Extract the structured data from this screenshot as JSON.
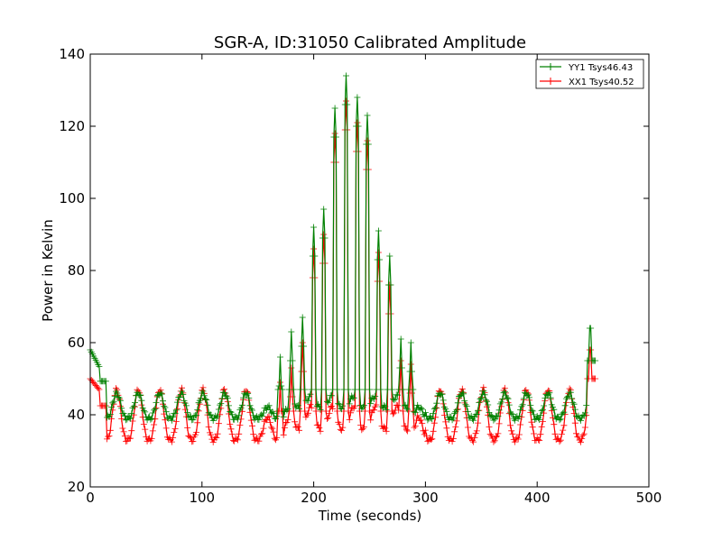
{
  "chart_data": {
    "type": "line",
    "title": "SGR-A, ID:31050 Calibrated Amplitude",
    "xlabel": "Time (seconds)",
    "ylabel": "Power in Kelvin",
    "xlim": [
      0,
      500
    ],
    "ylim": [
      20,
      140
    ],
    "xticks": [
      "0",
      "100",
      "200",
      "300",
      "400",
      "500"
    ],
    "yticks": [
      "20",
      "40",
      "60",
      "80",
      "100",
      "120",
      "140"
    ],
    "grid": false,
    "legend_position": "top-right",
    "series": [
      {
        "name": "YY1 Tsys46.43",
        "color": "#008000",
        "marker": "+",
        "baseline": 39,
        "osc_amp": 7,
        "start_value": 58,
        "end_value": 55,
        "end_peak": 64,
        "peaks": [
          {
            "x": 170,
            "y": 56
          },
          {
            "x": 180,
            "y": 63
          },
          {
            "x": 190,
            "y": 67
          },
          {
            "x": 200,
            "y": 92
          },
          {
            "x": 209,
            "y": 97
          },
          {
            "x": 219,
            "y": 125
          },
          {
            "x": 229,
            "y": 134
          },
          {
            "x": 239,
            "y": 128
          },
          {
            "x": 248,
            "y": 123
          },
          {
            "x": 258,
            "y": 91
          },
          {
            "x": 268,
            "y": 84
          },
          {
            "x": 278,
            "y": 61
          },
          {
            "x": 287,
            "y": 60
          }
        ]
      },
      {
        "name": "XX1 Tsys40.52",
        "color": "#ff0000",
        "marker": "+",
        "baseline": 33,
        "osc_amp": 14,
        "start_value": 50,
        "end_value": 50,
        "end_peak": 58,
        "peaks": [
          {
            "x": 170,
            "y": 49
          },
          {
            "x": 180,
            "y": 53
          },
          {
            "x": 190,
            "y": 60
          },
          {
            "x": 200,
            "y": 86
          },
          {
            "x": 209,
            "y": 90
          },
          {
            "x": 219,
            "y": 118
          },
          {
            "x": 229,
            "y": 127
          },
          {
            "x": 239,
            "y": 121
          },
          {
            "x": 248,
            "y": 116
          },
          {
            "x": 258,
            "y": 85
          },
          {
            "x": 268,
            "y": 76
          },
          {
            "x": 278,
            "y": 55
          },
          {
            "x": 287,
            "y": 54
          }
        ]
      }
    ]
  }
}
